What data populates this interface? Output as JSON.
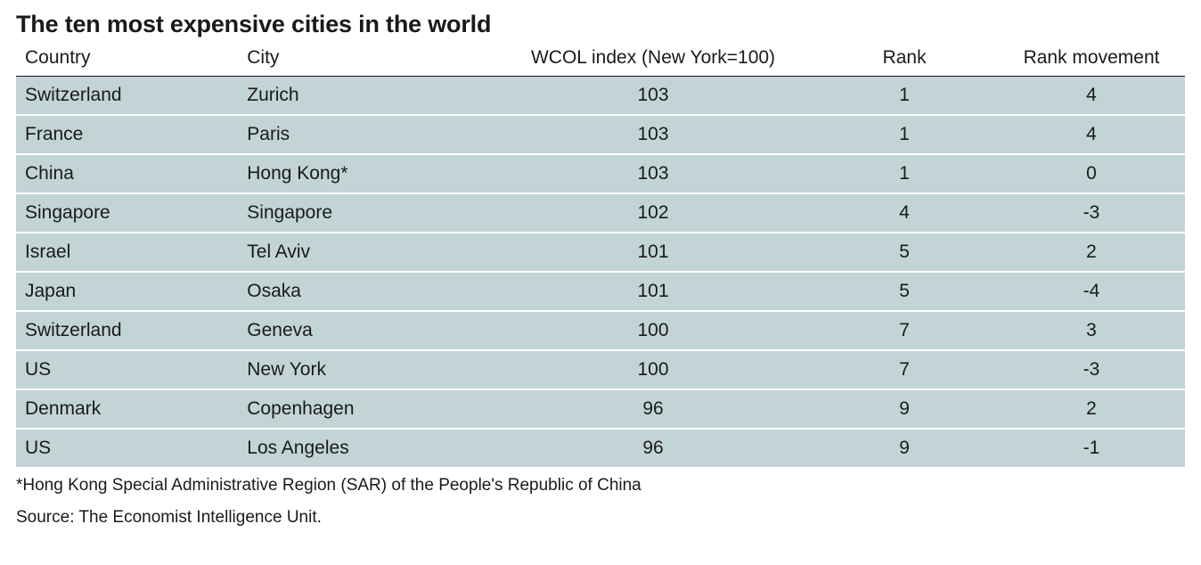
{
  "title": "The ten most expensive cities in the world",
  "table": {
    "type": "table",
    "background_color": "#ffffff",
    "row_background_color": "#c3d4d6",
    "row_gap_color": "#ffffff",
    "header_rule_color": "#1a1a1a",
    "text_color": "#1a1a1a",
    "title_fontsize": 27,
    "title_fontweight": 700,
    "body_fontsize": 21,
    "columns": [
      {
        "key": "country",
        "label": "Country",
        "width_pct": 19,
        "align": "left"
      },
      {
        "key": "city",
        "label": "City",
        "width_pct": 22,
        "align": "left"
      },
      {
        "key": "wcol",
        "label": "WCOL index (New York=100)",
        "width_pct": 27,
        "align": "center"
      },
      {
        "key": "rank",
        "label": "Rank",
        "width_pct": 16,
        "align": "center"
      },
      {
        "key": "move",
        "label": "Rank movement",
        "width_pct": 16,
        "align": "center"
      }
    ],
    "rows": [
      {
        "country": "Switzerland",
        "city": "Zurich",
        "wcol": "103",
        "rank": "1",
        "move": "4"
      },
      {
        "country": "France",
        "city": "Paris",
        "wcol": "103",
        "rank": "1",
        "move": "4"
      },
      {
        "country": "China",
        "city": "Hong Kong*",
        "wcol": "103",
        "rank": "1",
        "move": "0"
      },
      {
        "country": "Singapore",
        "city": "Singapore",
        "wcol": "102",
        "rank": "4",
        "move": "-3"
      },
      {
        "country": "Israel",
        "city": "Tel Aviv",
        "wcol": "101",
        "rank": "5",
        "move": "2"
      },
      {
        "country": "Japan",
        "city": "Osaka",
        "wcol": "101",
        "rank": "5",
        "move": "-4"
      },
      {
        "country": "Switzerland",
        "city": "Geneva",
        "wcol": "100",
        "rank": "7",
        "move": "3"
      },
      {
        "country": "US",
        "city": "New York",
        "wcol": "100",
        "rank": "7",
        "move": "-3"
      },
      {
        "country": "Denmark",
        "city": "Copenhagen",
        "wcol": "96",
        "rank": "9",
        "move": "2"
      },
      {
        "country": "US",
        "city": "Los Angeles",
        "wcol": "96",
        "rank": "9",
        "move": "-1"
      }
    ]
  },
  "footnote": "*Hong Kong Special Administrative Region (SAR) of the People's Republic of China",
  "source": "Source: The Economist Intelligence Unit."
}
